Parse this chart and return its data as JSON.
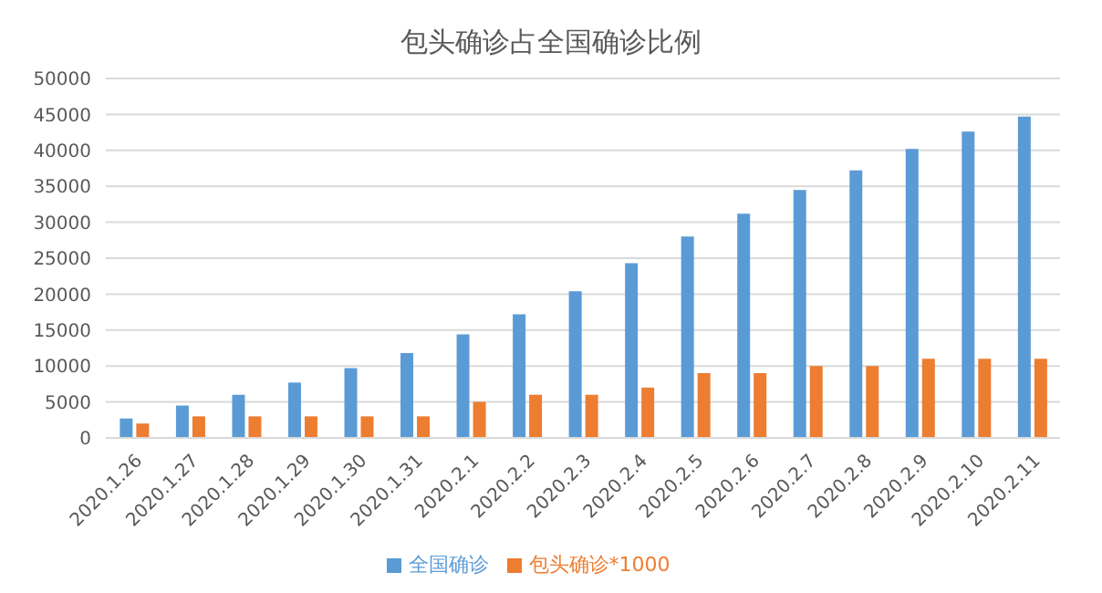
{
  "chart_data": {
    "type": "bar",
    "title": "包头确诊占全国确诊比例",
    "categories": [
      "2020.1.26",
      "2020.1.27",
      "2020.1.28",
      "2020.1.29",
      "2020.1.30",
      "2020.1.31",
      "2020.2.1",
      "2020.2.2",
      "2020.2.3",
      "2020.2.4",
      "2020.2.5",
      "2020.2.6",
      "2020.2.7",
      "2020.2.8",
      "2020.2.9",
      "2020.2.10",
      "2020.2.11"
    ],
    "series": [
      {
        "name": "全国确诊",
        "color": "#5b9bd5",
        "values": [
          2700,
          4500,
          6000,
          7700,
          9700,
          11800,
          14400,
          17200,
          20400,
          24300,
          28000,
          31200,
          34500,
          37200,
          40200,
          42600,
          44700
        ]
      },
      {
        "name": "包头确诊*1000",
        "color": "#ed7d31",
        "values": [
          2000,
          3000,
          3000,
          3000,
          3000,
          3000,
          5000,
          6000,
          6000,
          7000,
          9000,
          9000,
          10000,
          10000,
          11000,
          11000,
          11000
        ]
      }
    ],
    "ylim": [
      0,
      50000
    ],
    "yticks": [
      0,
      5000,
      10000,
      15000,
      20000,
      25000,
      30000,
      35000,
      40000,
      45000,
      50000
    ],
    "grid": "y",
    "legend": "bottom"
  }
}
